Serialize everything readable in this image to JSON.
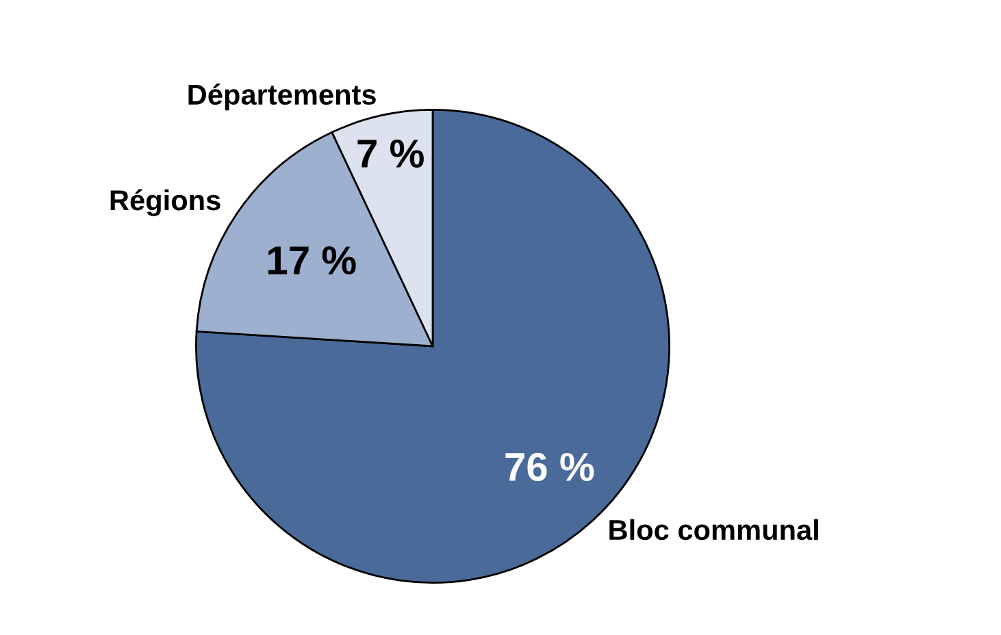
{
  "chart_data": {
    "type": "pie",
    "categories": [
      "Bloc communal",
      "Régions",
      "Départements"
    ],
    "values": [
      76,
      17,
      7
    ],
    "colors": [
      "#4a6a99",
      "#9db0cf",
      "#dde3ee"
    ],
    "value_labels": [
      "76 %",
      "17 %",
      "7 %"
    ]
  }
}
